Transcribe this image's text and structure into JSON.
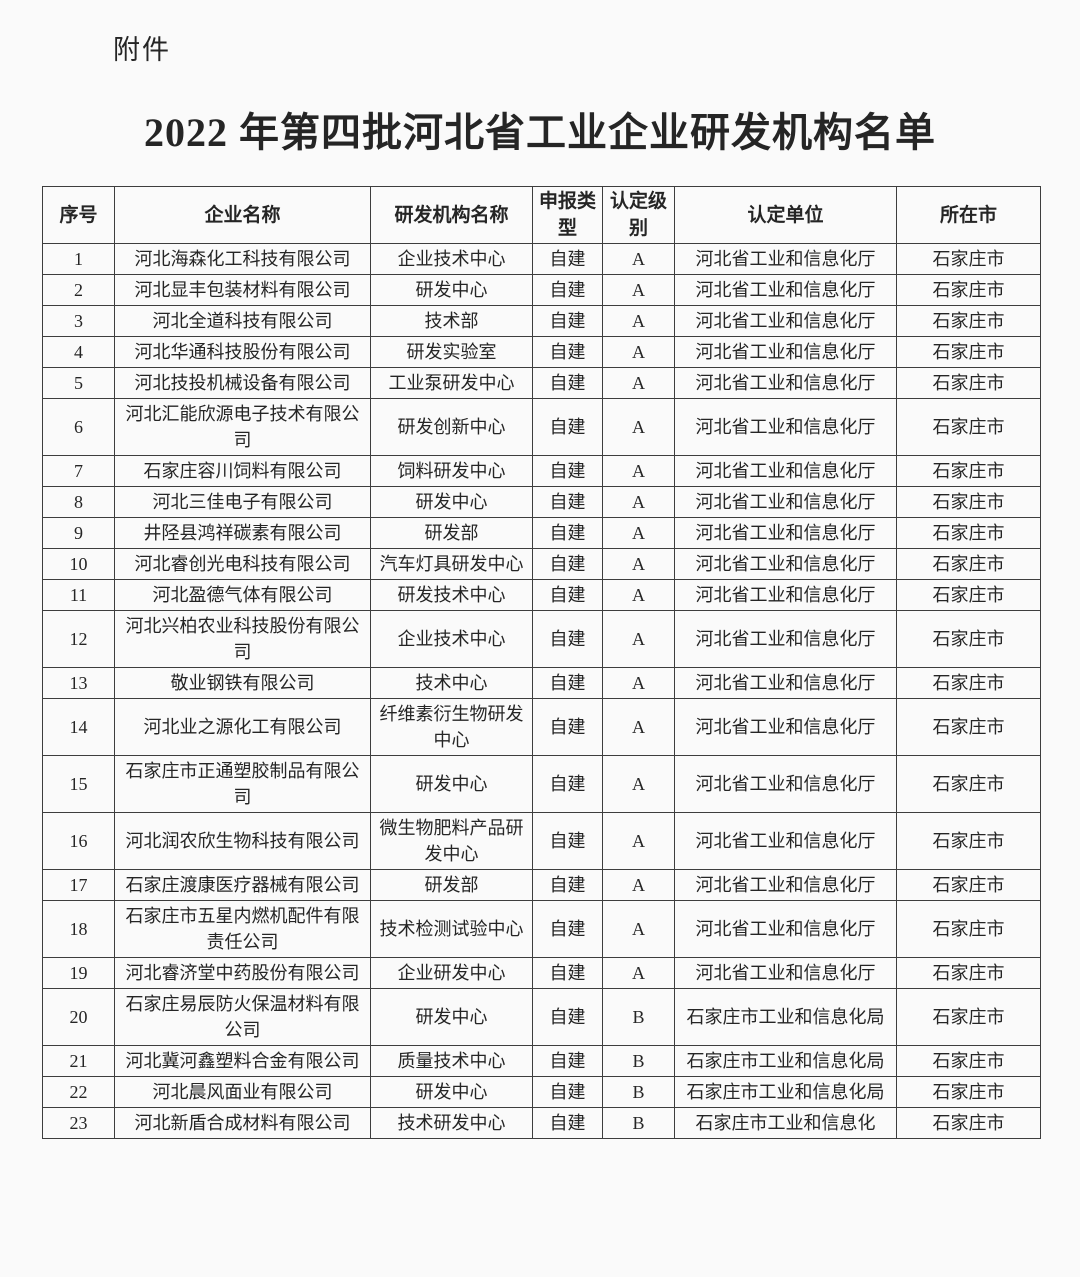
{
  "attachment_label": "附件",
  "title": "2022 年第四批河北省工业企业研发机构名单",
  "colors": {
    "bg": "#fafafa",
    "ink": "#252525",
    "border": "#3d3d3d"
  },
  "table": {
    "headers": [
      "序号",
      "企业名称",
      "研发机构名称",
      "申报类型",
      "认定级别",
      "认定单位",
      "所在市"
    ],
    "rows": [
      [
        "1",
        "河北海森化工科技有限公司",
        "企业技术中心",
        "自建",
        "A",
        "河北省工业和信息化厅",
        "石家庄市"
      ],
      [
        "2",
        "河北显丰包装材料有限公司",
        "研发中心",
        "自建",
        "A",
        "河北省工业和信息化厅",
        "石家庄市"
      ],
      [
        "3",
        "河北全道科技有限公司",
        "技术部",
        "自建",
        "A",
        "河北省工业和信息化厅",
        "石家庄市"
      ],
      [
        "4",
        "河北华通科技股份有限公司",
        "研发实验室",
        "自建",
        "A",
        "河北省工业和信息化厅",
        "石家庄市"
      ],
      [
        "5",
        "河北技投机械设备有限公司",
        "工业泵研发中心",
        "自建",
        "A",
        "河北省工业和信息化厅",
        "石家庄市"
      ],
      [
        "6",
        "河北汇能欣源电子技术有限公司",
        "研发创新中心",
        "自建",
        "A",
        "河北省工业和信息化厅",
        "石家庄市"
      ],
      [
        "7",
        "石家庄容川饲料有限公司",
        "饲料研发中心",
        "自建",
        "A",
        "河北省工业和信息化厅",
        "石家庄市"
      ],
      [
        "8",
        "河北三佳电子有限公司",
        "研发中心",
        "自建",
        "A",
        "河北省工业和信息化厅",
        "石家庄市"
      ],
      [
        "9",
        "井陉县鸿祥碳素有限公司",
        "研发部",
        "自建",
        "A",
        "河北省工业和信息化厅",
        "石家庄市"
      ],
      [
        "10",
        "河北睿创光电科技有限公司",
        "汽车灯具研发中心",
        "自建",
        "A",
        "河北省工业和信息化厅",
        "石家庄市"
      ],
      [
        "11",
        "河北盈德气体有限公司",
        "研发技术中心",
        "自建",
        "A",
        "河北省工业和信息化厅",
        "石家庄市"
      ],
      [
        "12",
        "河北兴柏农业科技股份有限公司",
        "企业技术中心",
        "自建",
        "A",
        "河北省工业和信息化厅",
        "石家庄市"
      ],
      [
        "13",
        "敬业钢铁有限公司",
        "技术中心",
        "自建",
        "A",
        "河北省工业和信息化厅",
        "石家庄市"
      ],
      [
        "14",
        "河北业之源化工有限公司",
        "纤维素衍生物研发中心",
        "自建",
        "A",
        "河北省工业和信息化厅",
        "石家庄市"
      ],
      [
        "15",
        "石家庄市正通塑胶制品有限公司",
        "研发中心",
        "自建",
        "A",
        "河北省工业和信息化厅",
        "石家庄市"
      ],
      [
        "16",
        "河北润农欣生物科技有限公司",
        "微生物肥料产品研发中心",
        "自建",
        "A",
        "河北省工业和信息化厅",
        "石家庄市"
      ],
      [
        "17",
        "石家庄渡康医疗器械有限公司",
        "研发部",
        "自建",
        "A",
        "河北省工业和信息化厅",
        "石家庄市"
      ],
      [
        "18",
        "石家庄市五星内燃机配件有限责任公司",
        "技术检测试验中心",
        "自建",
        "A",
        "河北省工业和信息化厅",
        "石家庄市"
      ],
      [
        "19",
        "河北睿济堂中药股份有限公司",
        "企业研发中心",
        "自建",
        "A",
        "河北省工业和信息化厅",
        "石家庄市"
      ],
      [
        "20",
        "石家庄易辰防火保温材料有限公司",
        "研发中心",
        "自建",
        "B",
        "石家庄市工业和信息化局",
        "石家庄市"
      ],
      [
        "21",
        "河北冀河鑫塑料合金有限公司",
        "质量技术中心",
        "自建",
        "B",
        "石家庄市工业和信息化局",
        "石家庄市"
      ],
      [
        "22",
        "河北晨风面业有限公司",
        "研发中心",
        "自建",
        "B",
        "石家庄市工业和信息化局",
        "石家庄市"
      ],
      [
        "23",
        "河北新盾合成材料有限公司",
        "技术研发中心",
        "自建",
        "B",
        "石家庄市工业和信息化",
        "石家庄市"
      ]
    ]
  }
}
